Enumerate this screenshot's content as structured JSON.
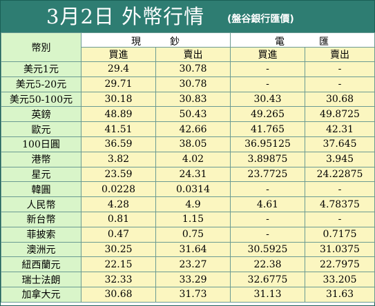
{
  "title": {
    "main": "3月2日 外幣行情",
    "source": "(盤谷銀行匯價)"
  },
  "header": {
    "currency": "幣別",
    "cash_group": [
      "現",
      "鈔"
    ],
    "telegraphic_group": [
      "電",
      "匯"
    ],
    "buy": "買進",
    "sell": "賣出"
  },
  "colors": {
    "title_bar": "#2e7d72",
    "name_column": "#d9f5c9",
    "value_column": "#fbf6c0",
    "grid": "#6a9a92"
  },
  "rows": [
    {
      "name": "美元1元",
      "cash_buy": "29.4",
      "cash_sell": "30.78",
      "tt_buy": "-",
      "tt_sell": "-"
    },
    {
      "name": "美元5-20元",
      "cash_buy": "29.71",
      "cash_sell": "30.78",
      "tt_buy": "-",
      "tt_sell": "-"
    },
    {
      "name": "美元50-100元",
      "cash_buy": "30.18",
      "cash_sell": "30.83",
      "tt_buy": "30.43",
      "tt_sell": "30.68"
    },
    {
      "name": "英鎊",
      "cash_buy": "48.89",
      "cash_sell": "50.43",
      "tt_buy": "49.265",
      "tt_sell": "49.8725"
    },
    {
      "name": "歐元",
      "cash_buy": "41.51",
      "cash_sell": "42.66",
      "tt_buy": "41.765",
      "tt_sell": "42.31"
    },
    {
      "name": "100日圓",
      "cash_buy": "36.59",
      "cash_sell": "38.05",
      "tt_buy": "36.95125",
      "tt_sell": "37.645"
    },
    {
      "name": "港幣",
      "cash_buy": "3.82",
      "cash_sell": "4.02",
      "tt_buy": "3.89875",
      "tt_sell": "3.945"
    },
    {
      "name": "星元",
      "cash_buy": "23.59",
      "cash_sell": "24.31",
      "tt_buy": "23.7725",
      "tt_sell": "24.22875"
    },
    {
      "name": "韓圓",
      "cash_buy": "0.0228",
      "cash_sell": "0.0314",
      "tt_buy": "-",
      "tt_sell": "-"
    },
    {
      "name": "人民幣",
      "cash_buy": "4.28",
      "cash_sell": "4.9",
      "tt_buy": "4.61",
      "tt_sell": "4.78375"
    },
    {
      "name": "新台幣",
      "cash_buy": "0.81",
      "cash_sell": "1.15",
      "tt_buy": "-",
      "tt_sell": "-"
    },
    {
      "name": "菲披索",
      "cash_buy": "0.47",
      "cash_sell": "0.75",
      "tt_buy": "-",
      "tt_sell": "0.7175"
    },
    {
      "name": "澳洲元",
      "cash_buy": "30.25",
      "cash_sell": "31.64",
      "tt_buy": "30.5925",
      "tt_sell": "31.0375"
    },
    {
      "name": "紐西蘭元",
      "cash_buy": "22.15",
      "cash_sell": "23.27",
      "tt_buy": "22.38",
      "tt_sell": "22.7975"
    },
    {
      "name": "瑞士法朗",
      "cash_buy": "32.33",
      "cash_sell": "33.29",
      "tt_buy": "32.6775",
      "tt_sell": "33.205"
    },
    {
      "name": "加拿大元",
      "cash_buy": "30.68",
      "cash_sell": "31.73",
      "tt_buy": "31.13",
      "tt_sell": "31.63"
    }
  ]
}
